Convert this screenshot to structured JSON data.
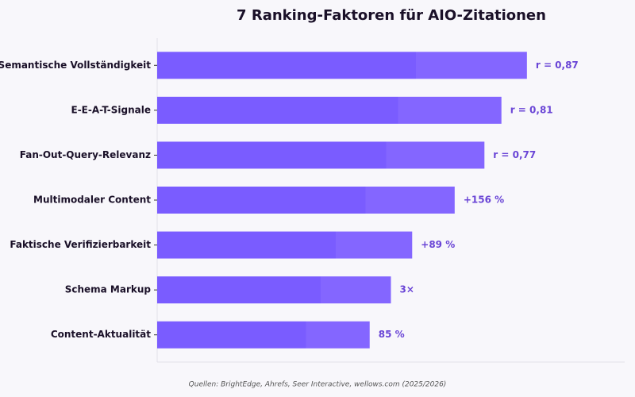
{
  "chart_data": {
    "type": "barh",
    "title": "7 Ranking-Faktoren für AIO-Zitationen",
    "categories": [
      "Semantische Vollständigkeit",
      "E-E-A-T-Signale",
      "Fan-Out-Query-Relevanz",
      "Multimodaler Content",
      "Faktische Verifizierbarkeit",
      "Schema Markup",
      "Content-Aktualität"
    ],
    "values": [
      87,
      81,
      77,
      70,
      60,
      55,
      50
    ],
    "annotations": [
      "r = 0,87",
      "r = 0,81",
      "r = 0,77",
      "+156 %",
      "+89 %",
      "3×",
      "85 %"
    ],
    "color": "#8466ff",
    "xlim": [
      0,
      110
    ],
    "source": "Quellen: BrightEdge, Ahrefs, Seer Interactive, wellows.com (2025/2026)"
  }
}
